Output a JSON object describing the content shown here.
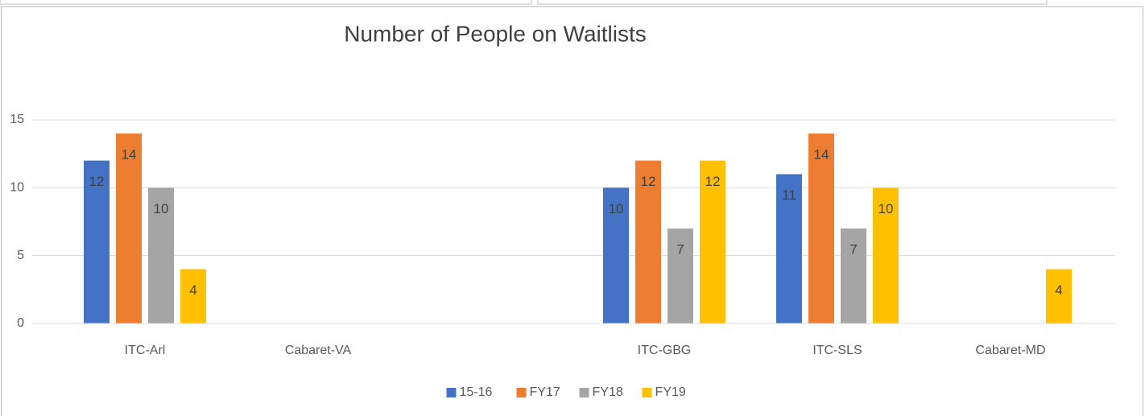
{
  "chart_data": {
    "type": "bar",
    "title": "Number of People on Waitlists",
    "categories": [
      "ITC-Arl",
      "Cabaret-VA",
      null,
      "ITC-GBG",
      "ITC-SLS",
      "Cabaret-MD"
    ],
    "series": [
      {
        "name": "15-16",
        "color": "#4472c4",
        "values": [
          12,
          null,
          null,
          10,
          11,
          null
        ]
      },
      {
        "name": "FY17",
        "color": "#ed7d31",
        "values": [
          14,
          null,
          null,
          12,
          14,
          null
        ]
      },
      {
        "name": "FY18",
        "color": "#a5a5a5",
        "values": [
          10,
          null,
          null,
          7,
          7,
          null
        ]
      },
      {
        "name": "FY19",
        "color": "#ffc000",
        "values": [
          4,
          null,
          null,
          12,
          10,
          4
        ]
      }
    ],
    "ylim": [
      0,
      15
    ],
    "yticks": [
      0,
      5,
      10,
      15
    ],
    "grid": true,
    "data_labels": true,
    "legend": "bottom"
  }
}
